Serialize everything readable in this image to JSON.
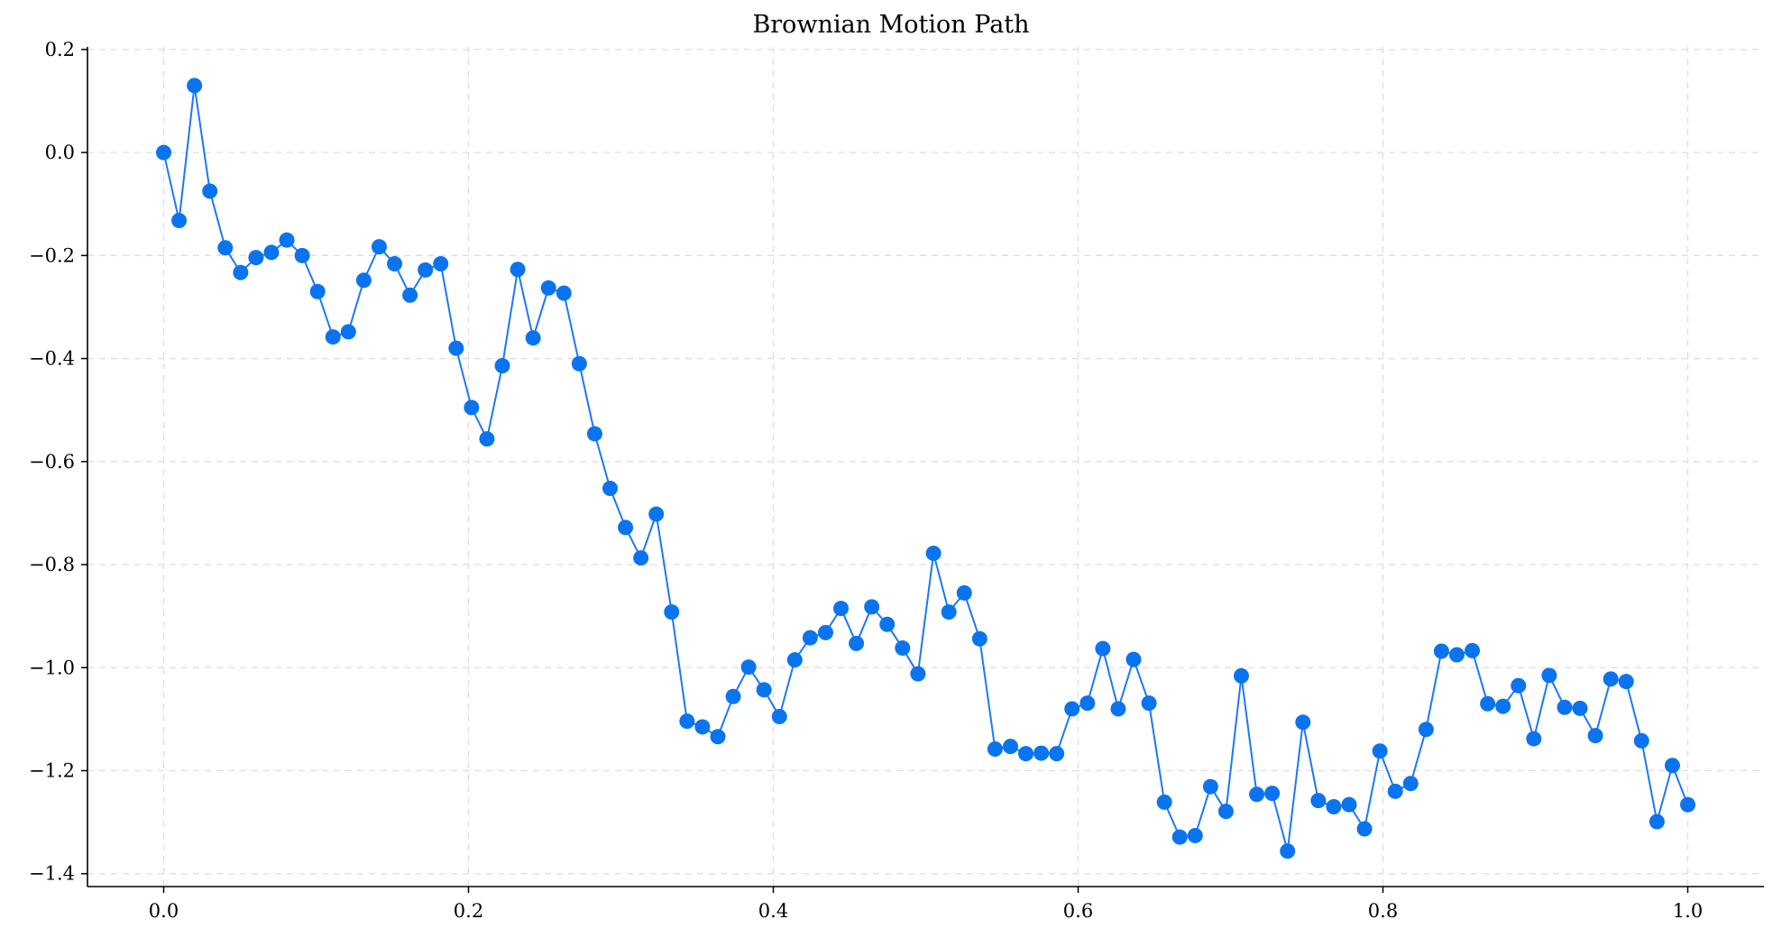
{
  "chart_data": {
    "type": "line",
    "title": "Brownian Motion Path",
    "xlabel": "",
    "ylabel": "",
    "xlim": [
      -0.05,
      1.05
    ],
    "ylim": [
      -1.425,
      0.205
    ],
    "xticks": [
      0.0,
      0.2,
      0.4,
      0.6,
      0.8,
      1.0
    ],
    "xtick_labels": [
      "0.0",
      "0.2",
      "0.4",
      "0.6",
      "0.8",
      "1.0"
    ],
    "yticks": [
      0.2,
      0.0,
      -0.2,
      -0.4,
      -0.6,
      -0.8,
      -1.0,
      -1.2,
      -1.4
    ],
    "ytick_labels": [
      "0.2",
      "0.0",
      "−0.2",
      "−0.4",
      "−0.6",
      "−0.8",
      "−1.0",
      "−1.2",
      "−1.4"
    ],
    "grid": true,
    "legend": "none",
    "colors": {
      "line": "#1f77f5",
      "marker": "#0a74f0",
      "grid": "#dddddd",
      "axis": "#000000"
    },
    "series": [
      {
        "marker": "circle",
        "x": [
          0.0,
          0.0101,
          0.0202,
          0.0303,
          0.0404,
          0.0505,
          0.0606,
          0.0707,
          0.0808,
          0.0909,
          0.101,
          0.1111,
          0.1212,
          0.1313,
          0.1414,
          0.1515,
          0.1616,
          0.1717,
          0.1818,
          0.1919,
          0.202,
          0.2121,
          0.2222,
          0.2323,
          0.2424,
          0.2525,
          0.2626,
          0.2727,
          0.2828,
          0.2929,
          0.303,
          0.3131,
          0.3232,
          0.3333,
          0.3434,
          0.3535,
          0.3636,
          0.3737,
          0.3838,
          0.3939,
          0.404,
          0.4141,
          0.4242,
          0.4343,
          0.4444,
          0.4545,
          0.4646,
          0.4747,
          0.4848,
          0.4949,
          0.5051,
          0.5152,
          0.5253,
          0.5354,
          0.5455,
          0.5556,
          0.5657,
          0.5758,
          0.5859,
          0.596,
          0.6061,
          0.6162,
          0.6263,
          0.6364,
          0.6465,
          0.6566,
          0.6667,
          0.6768,
          0.6869,
          0.697,
          0.7071,
          0.7172,
          0.7273,
          0.7374,
          0.7475,
          0.7576,
          0.7677,
          0.7778,
          0.7879,
          0.798,
          0.8081,
          0.8182,
          0.8283,
          0.8384,
          0.8485,
          0.8586,
          0.8687,
          0.8788,
          0.8889,
          0.899,
          0.9091,
          0.9192,
          0.9293,
          0.9394,
          0.9495,
          0.9596,
          0.9697,
          0.9798,
          0.9899,
          1.0
        ],
        "y": [
          0.0,
          -0.132,
          0.13,
          -0.075,
          -0.185,
          -0.233,
          -0.204,
          -0.194,
          -0.17,
          -0.2,
          -0.27,
          -0.358,
          -0.348,
          -0.248,
          -0.183,
          -0.216,
          -0.277,
          -0.228,
          -0.216,
          -0.38,
          -0.495,
          -0.556,
          -0.414,
          -0.227,
          -0.36,
          -0.263,
          -0.273,
          -0.41,
          -0.546,
          -0.652,
          -0.728,
          -0.787,
          -0.702,
          -0.892,
          -1.104,
          -1.115,
          -1.134,
          -1.056,
          -0.999,
          -1.043,
          -1.095,
          -0.985,
          -0.942,
          -0.932,
          -0.885,
          -0.953,
          -0.882,
          -0.916,
          -0.962,
          -1.012,
          -0.778,
          -0.892,
          -0.855,
          -0.944,
          -1.158,
          -1.153,
          -1.167,
          -1.166,
          -1.167,
          -1.08,
          -1.069,
          -0.963,
          -1.08,
          -0.984,
          -1.069,
          -1.261,
          -1.329,
          -1.326,
          -1.231,
          -1.279,
          -1.016,
          -1.246,
          -1.244,
          -1.356,
          -1.106,
          -1.258,
          -1.27,
          -1.266,
          -1.313,
          -1.162,
          -1.24,
          -1.225,
          -1.12,
          -0.968,
          -0.975,
          -0.967,
          -1.07,
          -1.075,
          -1.035,
          -1.138,
          -1.015,
          -1.077,
          -1.079,
          -1.132,
          -1.022,
          -1.027,
          -1.142,
          -1.299,
          -1.19,
          -1.266
        ]
      }
    ]
  }
}
